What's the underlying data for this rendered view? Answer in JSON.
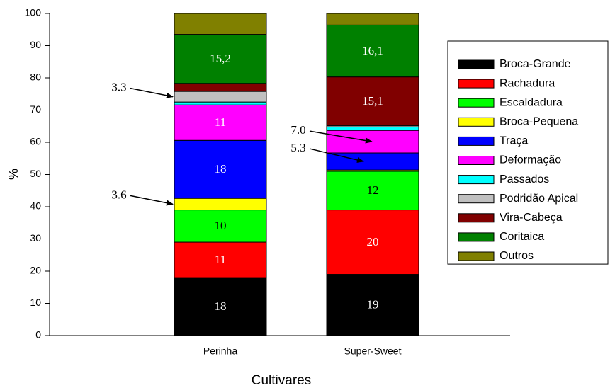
{
  "chart_data": {
    "type": "stacked-bar",
    "categories": [
      "Perinha",
      "Super-Sweet"
    ],
    "x_label": "Cultivares",
    "y_label": "%",
    "ylim": [
      0,
      100
    ],
    "yticks": [
      0,
      10,
      20,
      30,
      40,
      50,
      60,
      70,
      80,
      90,
      100
    ],
    "legend": "right",
    "series": [
      {
        "name": "Broca-Grande",
        "color": "#000000",
        "values": [
          18,
          19
        ],
        "value_labels": [
          "18",
          "19"
        ]
      },
      {
        "name": "Rachadura",
        "color": "#ff0000",
        "values": [
          11,
          20
        ],
        "value_labels": [
          "11",
          "20"
        ]
      },
      {
        "name": "Escaldadura",
        "color": "#00ff00",
        "values": [
          10,
          12
        ],
        "value_labels": [
          "10",
          "12"
        ]
      },
      {
        "name": "Broca-Pequena",
        "color": "#ffff00",
        "values": [
          3.6,
          0.4
        ],
        "value_labels": [
          "3.6",
          null
        ]
      },
      {
        "name": "Traça",
        "color": "#0000ff",
        "values": [
          18,
          5.3
        ],
        "value_labels": [
          "18",
          "5.3"
        ]
      },
      {
        "name": "Deformação",
        "color": "#ff00ff",
        "values": [
          11,
          7.0
        ],
        "value_labels": [
          "11",
          "7.0"
        ]
      },
      {
        "name": "Passados",
        "color": "#00ffff",
        "values": [
          0.9,
          1.1
        ],
        "value_labels": [
          null,
          null
        ]
      },
      {
        "name": "Podridão Apical",
        "color": "#c0c0c0",
        "values": [
          3.3,
          0.4
        ],
        "value_labels": [
          "3.3",
          null
        ]
      },
      {
        "name": "Vira-Cabeça",
        "color": "#800000",
        "values": [
          2.5,
          15.1
        ],
        "value_labels": [
          null,
          "15,1"
        ]
      },
      {
        "name": "Coritaica",
        "color": "#008000",
        "values": [
          15.2,
          16.1
        ],
        "value_labels": [
          "15,2",
          "16,1"
        ]
      },
      {
        "name": "Outros",
        "color": "#808000",
        "values": [
          6.5,
          3.6
        ],
        "value_labels": [
          null,
          null
        ]
      }
    ]
  }
}
